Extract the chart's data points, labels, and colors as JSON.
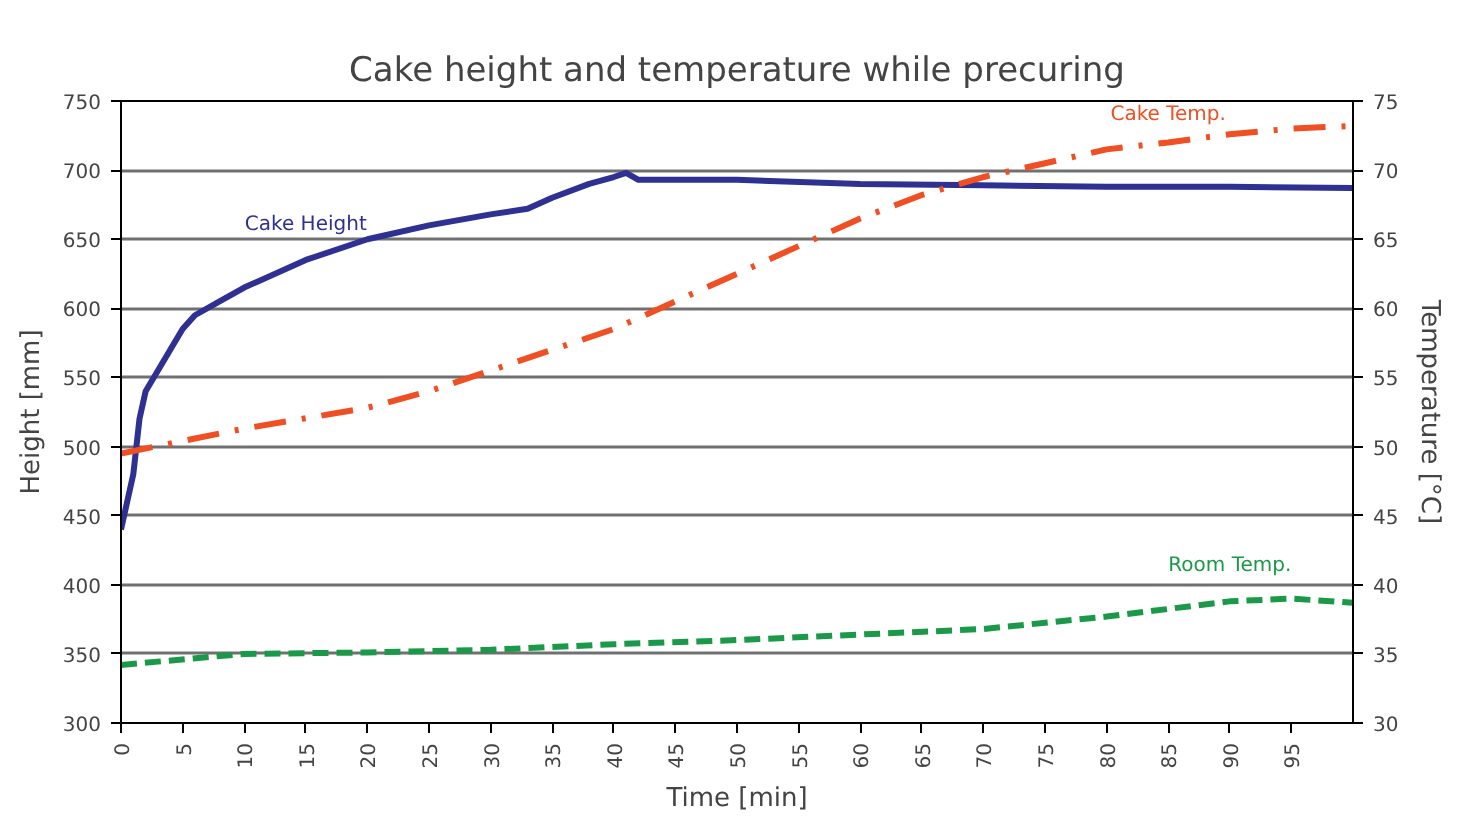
{
  "chart_data": {
    "type": "line",
    "title": "Cake height and temperature while precuring",
    "xlabel": "Time [min]",
    "ylabel": "Height [mm]",
    "y2label": "Temperature [°C]",
    "xlim": [
      0,
      100
    ],
    "xticks": [
      0,
      5,
      10,
      15,
      20,
      25,
      30,
      35,
      40,
      45,
      50,
      55,
      60,
      65,
      70,
      75,
      80,
      85,
      90,
      95
    ],
    "ylim": [
      300,
      750
    ],
    "yticks": [
      300,
      350,
      400,
      450,
      500,
      550,
      600,
      650,
      700,
      750
    ],
    "y2lim": [
      30,
      75
    ],
    "y2ticks": [
      30,
      35,
      40,
      45,
      50,
      55,
      60,
      65,
      70,
      75
    ],
    "grid": "y",
    "series": [
      {
        "name": "Cake Height",
        "color": "#2e3192",
        "line_style": "solid",
        "x": [
          0,
          0.5,
          1,
          1.5,
          2,
          3,
          4,
          5,
          6,
          8,
          10,
          15,
          20,
          25,
          30,
          33,
          35,
          38,
          40,
          41,
          42,
          50,
          60,
          70,
          80,
          90,
          100
        ],
        "values": [
          440,
          460,
          480,
          520,
          540,
          555,
          570,
          585,
          595,
          605,
          615,
          635,
          650,
          660,
          668,
          672,
          680,
          690,
          695,
          698,
          693,
          693,
          690,
          689,
          688,
          688,
          687
        ]
      },
      {
        "name": "Cake Temp.",
        "color": "#f04e23",
        "line_style": "dashdot",
        "axis": "y2",
        "x": [
          0,
          10,
          20,
          25,
          30,
          35,
          40,
          45,
          50,
          55,
          60,
          65,
          70,
          75,
          80,
          85,
          90,
          95,
          100
        ],
        "values": [
          49.5,
          51.3,
          52.8,
          54,
          55.5,
          57,
          58.5,
          60.5,
          62.5,
          64.5,
          66.5,
          68.2,
          69.5,
          70.5,
          71.5,
          72,
          72.6,
          73,
          73.2
        ]
      },
      {
        "name": "Room Temp.",
        "color": "#1a9a48",
        "line_style": "dashed",
        "axis": "y2",
        "x": [
          0,
          10,
          20,
          30,
          40,
          50,
          60,
          70,
          80,
          90,
          95,
          100
        ],
        "values": [
          34.2,
          35,
          35.1,
          35.3,
          35.7,
          36,
          36.4,
          36.8,
          37.7,
          38.8,
          39,
          38.7
        ]
      }
    ]
  }
}
